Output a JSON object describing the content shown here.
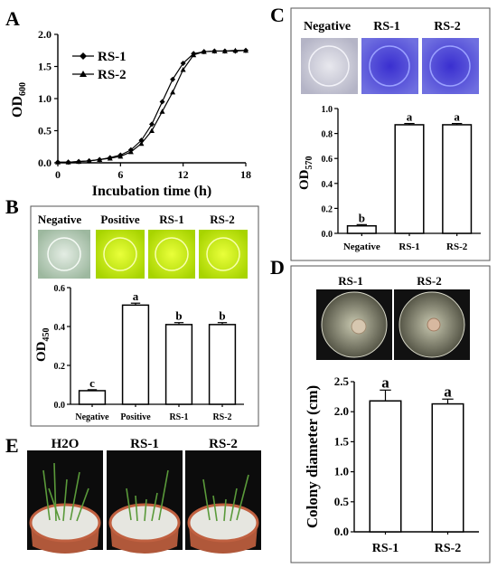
{
  "panels": {
    "A": {
      "letter": "A"
    },
    "B": {
      "letter": "B",
      "labels": [
        "Negative",
        "Positive",
        "RS-1",
        "RS-2"
      ]
    },
    "C": {
      "letter": "C",
      "labels": [
        "Negative",
        "RS-1",
        "RS-2"
      ]
    },
    "D": {
      "letter": "D",
      "labels": [
        "RS-1",
        "RS-2"
      ]
    },
    "E": {
      "letter": "E",
      "labels": [
        "H2O",
        "RS-1",
        "RS-2"
      ]
    }
  },
  "chart_data": [
    {
      "id": "A",
      "type": "line",
      "xlabel": "Incubation time (h)",
      "ylabel": "OD",
      "ylabel_sub": "600",
      "xlim": [
        0,
        18
      ],
      "ylim": [
        0,
        2.0
      ],
      "xticks": [
        0,
        6,
        12,
        18
      ],
      "yticks": [
        0.0,
        0.5,
        1.0,
        1.5,
        2.0
      ],
      "x": [
        0,
        1,
        2,
        3,
        4,
        5,
        6,
        7,
        8,
        9,
        10,
        11,
        12,
        13,
        14,
        15,
        16,
        17,
        18
      ],
      "series": [
        {
          "name": "RS-1",
          "marker": "diamond",
          "values": [
            0.01,
            0.01,
            0.02,
            0.03,
            0.05,
            0.08,
            0.12,
            0.2,
            0.35,
            0.6,
            0.95,
            1.3,
            1.55,
            1.7,
            1.73,
            1.74,
            1.74,
            1.74,
            1.75
          ]
        },
        {
          "name": "RS-2",
          "marker": "triangle",
          "values": [
            0.01,
            0.01,
            0.02,
            0.03,
            0.05,
            0.07,
            0.1,
            0.17,
            0.3,
            0.5,
            0.8,
            1.1,
            1.45,
            1.68,
            1.73,
            1.74,
            1.74,
            1.75,
            1.75
          ]
        }
      ]
    },
    {
      "id": "B",
      "type": "bar",
      "ylabel": "OD",
      "ylabel_sub": "450",
      "categories": [
        "Negative",
        "Positive",
        "RS-1",
        "RS-2"
      ],
      "values": [
        0.07,
        0.51,
        0.41,
        0.41
      ],
      "errors": [
        0.005,
        0.01,
        0.01,
        0.01
      ],
      "letters": [
        "c",
        "a",
        "b",
        "b"
      ],
      "ylim": [
        0,
        0.6
      ],
      "yticks": [
        0.0,
        0.2,
        0.4,
        0.6
      ]
    },
    {
      "id": "C",
      "type": "bar",
      "ylabel": "OD",
      "ylabel_sub": "570",
      "categories": [
        "Negative",
        "RS-1",
        "RS-2"
      ],
      "values": [
        0.06,
        0.87,
        0.87
      ],
      "errors": [
        0.01,
        0.01,
        0.01
      ],
      "letters": [
        "b",
        "a",
        "a"
      ],
      "ylim": [
        0,
        1.0
      ],
      "yticks": [
        0.0,
        0.2,
        0.4,
        0.6,
        0.8,
        1.0
      ]
    },
    {
      "id": "D",
      "type": "bar",
      "ylabel": "Colony diameter (cm)",
      "categories": [
        "RS-1",
        "RS-2"
      ],
      "values": [
        2.18,
        2.13
      ],
      "errors": [
        0.18,
        0.08
      ],
      "letters": [
        "a",
        "a"
      ],
      "ylim": [
        0,
        2.5
      ],
      "yticks": [
        0.0,
        0.5,
        1.0,
        1.5,
        2.0,
        2.5
      ]
    }
  ]
}
